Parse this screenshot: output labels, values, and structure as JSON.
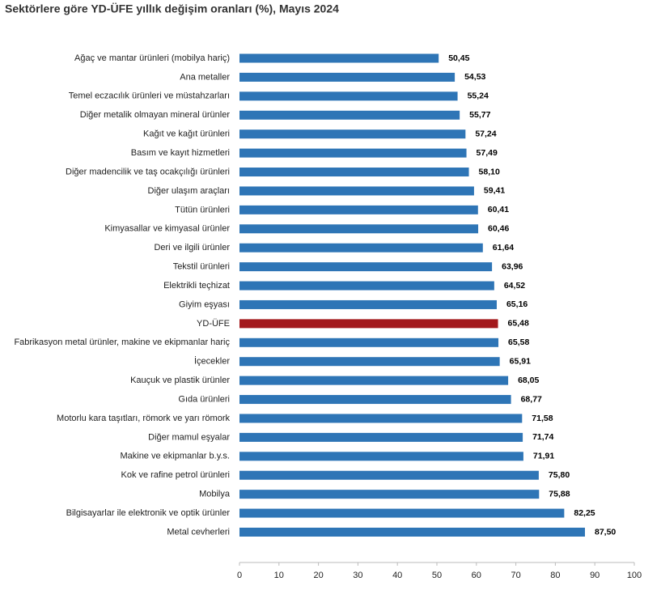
{
  "chart_data": {
    "type": "hbar",
    "title": "Sektörlere göre YD-ÜFE yıllık değişim oranları (%), Mayıs 2024",
    "categories": [
      "Ağaç ve mantar ürünleri (mobilya hariç)",
      "Ana metaller",
      "Temel eczacılık ürünleri ve müstahzarları",
      "Diğer metalik olmayan mineral ürünler",
      "Kağıt ve kağıt ürünleri",
      "Basım ve kayıt hizmetleri",
      "Diğer madencilik ve taş ocakçılığı ürünleri",
      "Diğer ulaşım araçları",
      "Tütün ürünleri",
      "Kimyasallar ve kimyasal ürünler",
      "Deri ve ilgili ürünler",
      "Tekstil ürünleri",
      "Elektrikli teçhizat",
      "Giyim eşyası",
      "YD-ÜFE",
      "Fabrikasyon metal ürünler, makine ve ekipmanlar hariç",
      "İçecekler",
      "Kauçuk ve plastik ürünler",
      "Gıda ürünleri",
      "Motorlu kara taşıtları, römork ve yarı römork",
      "Diğer mamul eşyalar",
      "Makine ve ekipmanlar b.y.s.",
      "Kok ve rafine petrol ürünleri",
      "Mobilya",
      "Bilgisayarlar ile elektronik ve optik ürünler",
      "Metal cevherleri"
    ],
    "values": [
      50.45,
      54.53,
      55.24,
      55.77,
      57.24,
      57.49,
      58.1,
      59.41,
      60.41,
      60.46,
      61.64,
      63.96,
      64.52,
      65.16,
      65.48,
      65.58,
      65.91,
      68.05,
      68.77,
      71.58,
      71.74,
      71.91,
      75.8,
      75.88,
      82.25,
      87.5
    ],
    "value_labels": [
      "50,45",
      "54,53",
      "55,24",
      "55,77",
      "57,24",
      "57,49",
      "58,10",
      "59,41",
      "60,41",
      "60,46",
      "61,64",
      "63,96",
      "64,52",
      "65,16",
      "65,48",
      "65,58",
      "65,91",
      "68,05",
      "68,77",
      "71,58",
      "71,74",
      "71,91",
      "75,80",
      "75,88",
      "82,25",
      "87,50"
    ],
    "colors": [
      "#2e75b6",
      "#2e75b6",
      "#2e75b6",
      "#2e75b6",
      "#2e75b6",
      "#2e75b6",
      "#2e75b6",
      "#2e75b6",
      "#2e75b6",
      "#2e75b6",
      "#2e75b6",
      "#2e75b6",
      "#2e75b6",
      "#2e75b6",
      "#a3181c",
      "#2e75b6",
      "#2e75b6",
      "#2e75b6",
      "#2e75b6",
      "#2e75b6",
      "#2e75b6",
      "#2e75b6",
      "#2e75b6",
      "#2e75b6",
      "#2e75b6",
      "#2e75b6"
    ],
    "xlim": [
      0,
      100
    ],
    "xticks": [
      0,
      10,
      20,
      30,
      40,
      50,
      60,
      70,
      80,
      90,
      100
    ]
  }
}
